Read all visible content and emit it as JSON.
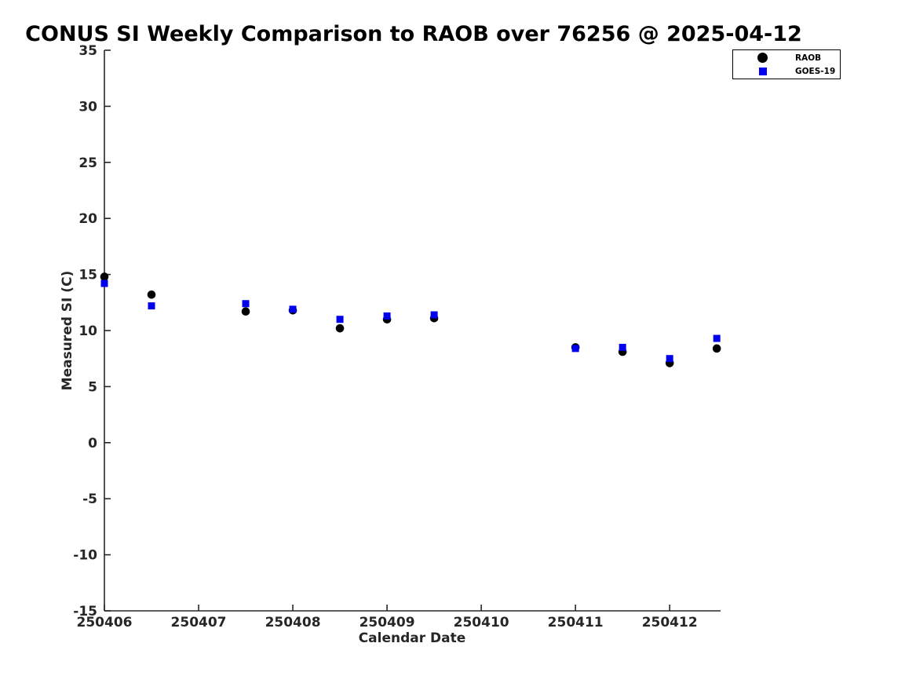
{
  "chart_data": {
    "type": "scatter",
    "title": "CONUS SI Weekly Comparison to RAOB over 76256 @ 2025-04-12",
    "xlabel": "Calendar Date",
    "ylabel": "Measured SI (C)",
    "xlim": [
      250406,
      250412.54
    ],
    "ylim": [
      -15,
      35
    ],
    "x_ticks": [
      250406,
      250407,
      250408,
      250409,
      250410,
      250411,
      250412
    ],
    "y_ticks": [
      35,
      30,
      25,
      20,
      15,
      10,
      5,
      0,
      -5,
      -10,
      -15
    ],
    "grid": false,
    "legend_position": "outside-top-right",
    "series": [
      {
        "name": "RAOB",
        "marker": "circle",
        "color": "#000000",
        "points": [
          [
            250406.0,
            14.8
          ],
          [
            250406.5,
            13.2
          ],
          [
            250407.5,
            11.7
          ],
          [
            250408.0,
            11.8
          ],
          [
            250408.5,
            10.2
          ],
          [
            250409.0,
            11.0
          ],
          [
            250409.5,
            11.1
          ],
          [
            250411.0,
            8.5
          ],
          [
            250411.5,
            8.1
          ],
          [
            250412.0,
            7.1
          ],
          [
            250412.5,
            8.4
          ]
        ]
      },
      {
        "name": "GOES-19",
        "marker": "square",
        "color": "#0000ee",
        "points": [
          [
            250406.0,
            14.2
          ],
          [
            250406.5,
            12.2
          ],
          [
            250407.5,
            12.4
          ],
          [
            250408.0,
            11.9
          ],
          [
            250408.5,
            11.0
          ],
          [
            250409.0,
            11.3
          ],
          [
            250409.5,
            11.4
          ],
          [
            250411.0,
            8.4
          ],
          [
            250411.5,
            8.5
          ],
          [
            250412.0,
            7.5
          ],
          [
            250412.5,
            9.3
          ]
        ]
      }
    ]
  }
}
